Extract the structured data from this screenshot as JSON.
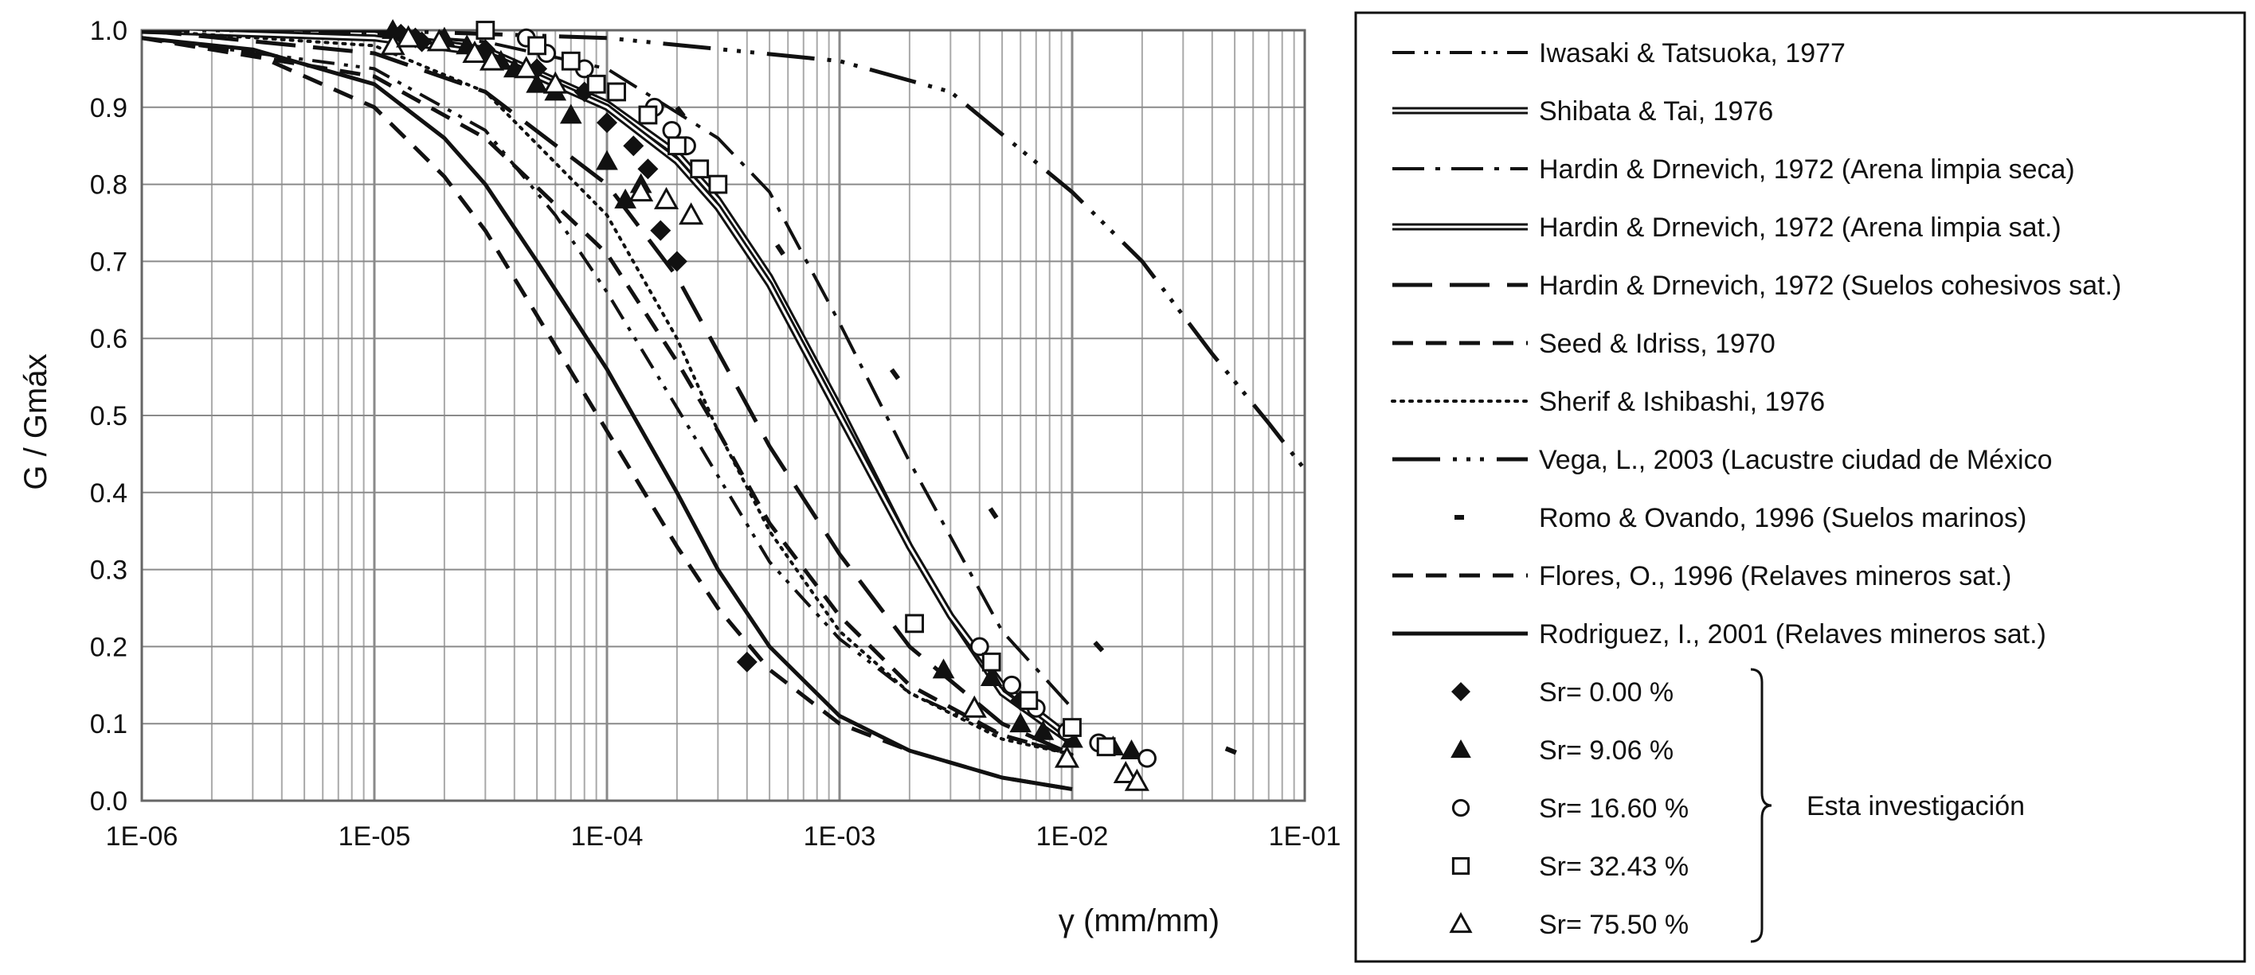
{
  "chart_data": {
    "type": "line",
    "xlabel": "γ (mm/mm)",
    "ylabel": "G / Gmáx",
    "x_scale": "log",
    "xlim": [
      1e-06,
      0.1
    ],
    "ylim": [
      0,
      1
    ],
    "x_ticks": [
      "1E-06",
      "1E-05",
      "1E-04",
      "1E-03",
      "1E-02",
      "1E-01"
    ],
    "y_ticks": [
      "0.0",
      "0.1",
      "0.2",
      "0.3",
      "0.4",
      "0.5",
      "0.6",
      "0.7",
      "0.8",
      "0.9",
      "1.0"
    ],
    "grid": true,
    "legend_position": "right",
    "series": [
      {
        "name": "Iwasaki & Tatsuoka, 1977",
        "style": "dashdotdot",
        "x": [
          1e-06,
          1e-05,
          3e-05,
          6e-05,
          0.0001,
          0.0002,
          0.0005,
          0.001,
          0.002,
          0.005,
          0.01
        ],
        "y": [
          0.99,
          0.95,
          0.87,
          0.76,
          0.66,
          0.51,
          0.31,
          0.21,
          0.14,
          0.085,
          0.06
        ]
      },
      {
        "name": "Shibata & Tai, 1976",
        "style": "double",
        "x": [
          1e-06,
          1e-05,
          3e-05,
          0.0001,
          0.0002,
          0.0003,
          0.0005,
          0.001,
          0.002,
          0.003,
          0.005,
          0.01
        ],
        "y": [
          1.0,
          0.995,
          0.975,
          0.905,
          0.84,
          0.78,
          0.68,
          0.51,
          0.33,
          0.24,
          0.14,
          0.075
        ]
      },
      {
        "name": "Hardin & Drnevich, 1972 (Arena limpia seca)",
        "style": "dashdot",
        "x": [
          1e-06,
          1e-05,
          3e-05,
          0.0001,
          0.0003,
          0.0005,
          0.001,
          0.002,
          0.005,
          0.01
        ],
        "y": [
          1.0,
          0.995,
          0.985,
          0.95,
          0.86,
          0.79,
          0.62,
          0.44,
          0.22,
          0.12
        ]
      },
      {
        "name": "Hardin & Drnevich, 1972 (Arena limpia sat.)",
        "style": "double",
        "x": [
          1e-06,
          1e-05,
          3e-05,
          0.0001,
          0.0002,
          0.0003,
          0.0005,
          0.001,
          0.002,
          0.003,
          0.005,
          0.01
        ],
        "y": [
          1.0,
          0.99,
          0.97,
          0.9,
          0.83,
          0.77,
          0.67,
          0.5,
          0.33,
          0.24,
          0.15,
          0.08
        ]
      },
      {
        "name": "Hardin & Drnevich, 1972 (Suelos cohesivos sat.)",
        "style": "longdash",
        "x": [
          1e-06,
          1e-05,
          3e-05,
          0.0001,
          0.0002,
          0.0005,
          0.001,
          0.002,
          0.005,
          0.01
        ],
        "y": [
          1.0,
          0.97,
          0.92,
          0.8,
          0.68,
          0.46,
          0.32,
          0.2,
          0.1,
          0.06
        ]
      },
      {
        "name": "Seed & Idriss, 1970",
        "style": "dash",
        "x": [
          1e-06,
          1e-05,
          3e-05,
          0.0001,
          0.0002,
          0.0003,
          0.0005,
          0.001,
          0.002,
          0.005,
          0.01
        ],
        "y": [
          0.99,
          0.94,
          0.86,
          0.71,
          0.57,
          0.48,
          0.36,
          0.24,
          0.15,
          0.085,
          0.06
        ]
      },
      {
        "name": "Sherif & Ishibashi, 1976",
        "style": "dotted",
        "x": [
          1e-06,
          1e-05,
          3e-05,
          0.0001,
          0.0002,
          0.0003,
          0.0005,
          0.001,
          0.002,
          0.005,
          0.01
        ],
        "y": [
          1.0,
          0.98,
          0.92,
          0.76,
          0.6,
          0.48,
          0.35,
          0.22,
          0.14,
          0.08,
          0.06
        ]
      },
      {
        "name": "Vega, L., 2003 (Lacustre ciudad de México",
        "style": "dashdotdotlong",
        "x": [
          1e-06,
          1e-05,
          0.0001,
          0.001,
          0.003,
          0.01,
          0.02,
          0.04,
          0.07,
          0.1
        ],
        "y": [
          1.0,
          1.0,
          0.99,
          0.96,
          0.92,
          0.79,
          0.7,
          0.58,
          0.49,
          0.43
        ]
      },
      {
        "name": "Romo & Ovando, 1996 (Suelos marinos)",
        "style": "sparse-dash",
        "x": [
          0.0002,
          0.0004,
          0.0006,
          0.0012,
          0.0022,
          0.004,
          0.007,
          0.013,
          0.022,
          0.04,
          0.07
        ],
        "y": [
          0.9,
          0.78,
          0.7,
          0.62,
          0.51,
          0.4,
          0.29,
          0.2,
          0.125,
          0.075,
          0.045
        ]
      },
      {
        "name": "Flores, O., 1996 (Relaves mineros sat.)",
        "style": "dash",
        "x": [
          1e-06,
          3e-06,
          1e-05,
          2e-05,
          3e-05,
          5e-05,
          0.0001,
          0.0002,
          0.0003,
          0.0005,
          0.001,
          0.002,
          0.005,
          0.01
        ],
        "y": [
          0.99,
          0.97,
          0.9,
          0.81,
          0.74,
          0.63,
          0.48,
          0.33,
          0.25,
          0.17,
          0.1,
          0.065,
          0.03,
          0.015
        ]
      },
      {
        "name": "Rodriguez, I., 2001 (Relaves mineros sat.)",
        "style": "solid",
        "x": [
          1e-06,
          3e-06,
          1e-05,
          2e-05,
          3e-05,
          5e-05,
          0.0001,
          0.0002,
          0.0003,
          0.0005,
          0.001,
          0.002,
          0.005,
          0.01
        ],
        "y": [
          0.99,
          0.975,
          0.93,
          0.86,
          0.8,
          0.7,
          0.56,
          0.4,
          0.3,
          0.2,
          0.11,
          0.065,
          0.03,
          0.015
        ]
      }
    ],
    "scatter": [
      {
        "name": "Sr= 0.00 %",
        "marker": "diamond",
        "x": [
          1.3e-05,
          1.5e-05,
          1.6e-05,
          3e-05,
          5e-05,
          8e-05,
          0.0001,
          0.00013,
          0.00015,
          0.00017,
          0.0002,
          0.0004,
          0.006
        ],
        "y": [
          0.995,
          0.99,
          0.985,
          0.975,
          0.95,
          0.92,
          0.88,
          0.85,
          0.82,
          0.74,
          0.7,
          0.18,
          0.13
        ]
      },
      {
        "name": "Sr= 9.06 %",
        "marker": "triangle",
        "x": [
          1.2e-05,
          2e-05,
          2.5e-05,
          3e-05,
          3.5e-05,
          4e-05,
          5e-05,
          6e-05,
          7e-05,
          0.0001,
          0.00012,
          0.00014,
          0.0028,
          0.0045,
          0.006,
          0.0075,
          0.01,
          0.015,
          0.018
        ],
        "y": [
          1.0,
          0.99,
          0.98,
          0.97,
          0.96,
          0.95,
          0.93,
          0.92,
          0.89,
          0.83,
          0.78,
          0.8,
          0.17,
          0.16,
          0.1,
          0.09,
          0.08,
          0.07,
          0.065
        ]
      },
      {
        "name": "Sr= 16.60 %",
        "marker": "circle",
        "x": [
          4.5e-05,
          5.5e-05,
          8e-05,
          0.00011,
          0.00016,
          0.00019,
          0.00022,
          0.004,
          0.0055,
          0.007,
          0.0095,
          0.013,
          0.021
        ],
        "y": [
          0.99,
          0.97,
          0.95,
          0.92,
          0.9,
          0.87,
          0.85,
          0.2,
          0.15,
          0.12,
          0.09,
          0.075,
          0.055
        ]
      },
      {
        "name": "Sr= 32.43 %",
        "marker": "square",
        "x": [
          3e-05,
          5e-05,
          7e-05,
          9e-05,
          0.00011,
          0.00015,
          0.0002,
          0.00025,
          0.0003,
          0.0021,
          0.0045,
          0.0065,
          0.01,
          0.014
        ],
        "y": [
          1.0,
          0.98,
          0.96,
          0.93,
          0.92,
          0.89,
          0.85,
          0.82,
          0.8,
          0.23,
          0.18,
          0.13,
          0.095,
          0.07
        ]
      },
      {
        "name": "Sr= 75.50 %",
        "marker": "triangle-open",
        "x": [
          1.2e-05,
          1.4e-05,
          1.9e-05,
          2.7e-05,
          3.2e-05,
          4.5e-05,
          6e-05,
          0.00014,
          0.00018,
          0.00023,
          0.0038,
          0.0095,
          0.017,
          0.019
        ],
        "y": [
          0.98,
          0.99,
          0.985,
          0.97,
          0.96,
          0.95,
          0.93,
          0.79,
          0.78,
          0.76,
          0.12,
          0.055,
          0.035,
          0.025
        ]
      }
    ],
    "bracket_label": "Esta investigación"
  }
}
